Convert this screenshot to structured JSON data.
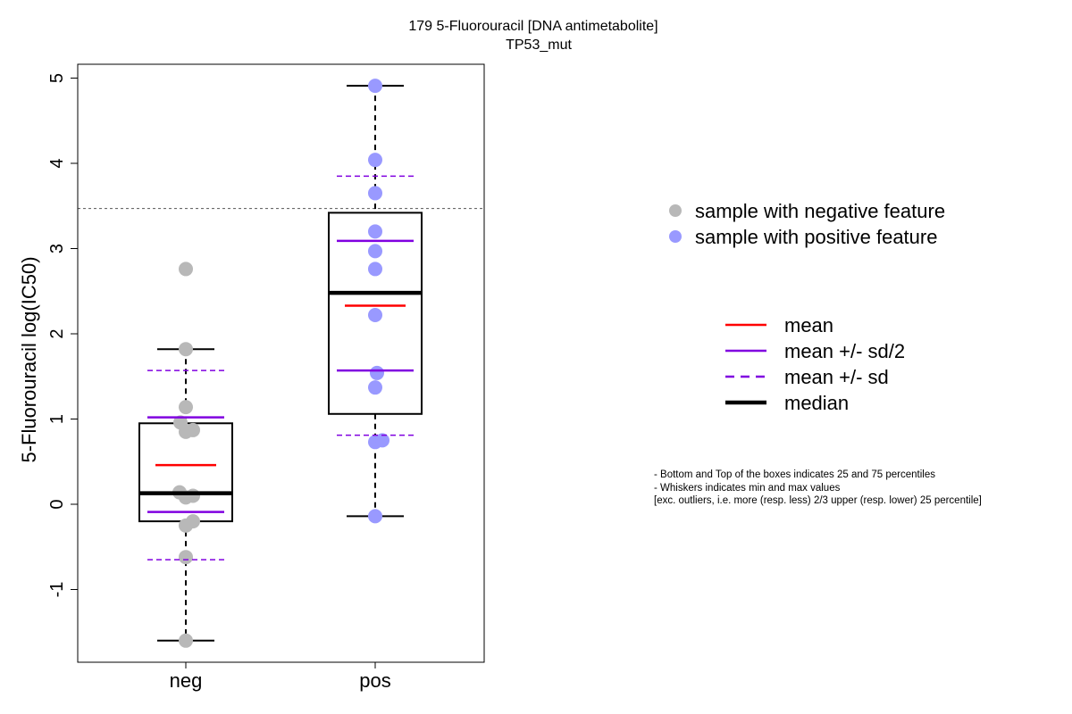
{
  "chart_data": {
    "type": "box",
    "title": "179 5-Fluorouracil [DNA antimetabolite]",
    "subtitle": "TP53_mut",
    "xlabel": "",
    "ylabel": "5-Fluorouracil log(IC50)",
    "ylim": [
      -1.8,
      5.15
    ],
    "yticks": [
      -1,
      0,
      1,
      2,
      3,
      4,
      5
    ],
    "categories": [
      "neg",
      "pos"
    ],
    "threshold_line": 3.47,
    "groups": [
      {
        "category": "neg",
        "color": "#b8b8b8",
        "q1": -0.2,
        "median": 0.13,
        "q3": 0.95,
        "whisker_low": -1.6,
        "whisker_high": 1.82,
        "mean": 0.46,
        "mean_minus_half_sd": -0.09,
        "mean_plus_half_sd": 1.02,
        "mean_minus_sd": -0.65,
        "mean_plus_sd": 1.57,
        "points": [
          {
            "x": 0.0,
            "y": 2.76
          },
          {
            "x": 0.0,
            "y": 1.82
          },
          {
            "x": 0.0,
            "y": 1.14
          },
          {
            "x": -0.06,
            "y": 0.96
          },
          {
            "x": 0.0,
            "y": 0.85
          },
          {
            "x": 0.08,
            "y": 0.87
          },
          {
            "x": -0.07,
            "y": 0.14
          },
          {
            "x": 0.0,
            "y": 0.08
          },
          {
            "x": 0.08,
            "y": 0.1
          },
          {
            "x": 0.0,
            "y": -0.25
          },
          {
            "x": 0.08,
            "y": -0.2
          },
          {
            "x": 0.0,
            "y": -0.62
          },
          {
            "x": 0.0,
            "y": -1.6
          }
        ]
      },
      {
        "category": "pos",
        "color": "#9999ff",
        "q1": 1.06,
        "median": 2.48,
        "q3": 3.42,
        "whisker_low": -0.14,
        "whisker_high": 4.91,
        "mean": 2.33,
        "mean_minus_half_sd": 1.57,
        "mean_plus_half_sd": 3.09,
        "mean_minus_sd": 0.81,
        "mean_plus_sd": 3.85,
        "points": [
          {
            "x": 0.0,
            "y": 4.91
          },
          {
            "x": 0.0,
            "y": 4.04
          },
          {
            "x": 0.0,
            "y": 3.65
          },
          {
            "x": 0.0,
            "y": 3.2
          },
          {
            "x": 0.0,
            "y": 2.97
          },
          {
            "x": 0.0,
            "y": 2.76
          },
          {
            "x": 0.0,
            "y": 2.22
          },
          {
            "x": 0.02,
            "y": 1.54
          },
          {
            "x": 0.0,
            "y": 1.37
          },
          {
            "x": 0.0,
            "y": 0.73
          },
          {
            "x": 0.08,
            "y": 0.75
          },
          {
            "x": 0.0,
            "y": -0.14
          }
        ]
      }
    ],
    "point_legend": [
      {
        "label": "sample with negative feature",
        "color": "#b8b8b8"
      },
      {
        "label": "sample with positive feature",
        "color": "#9999ff"
      }
    ],
    "line_legend": [
      {
        "label": "mean",
        "color": "#ff0000",
        "style": "solid"
      },
      {
        "label": "mean +/- sd/2",
        "color": "#8000e0",
        "style": "solid"
      },
      {
        "label": "mean +/- sd",
        "color": "#8000e0",
        "style": "dashed"
      },
      {
        "label": "median",
        "color": "#000000",
        "style": "thick"
      }
    ],
    "notes": [
      "- Bottom and Top of the boxes indicates 25 and 75 percentiles",
      "- Whiskers indicates min and max values",
      "[exc. outliers, i.e. more (resp. less) 2/3 upper (resp. lower) 25 percentile]"
    ]
  }
}
